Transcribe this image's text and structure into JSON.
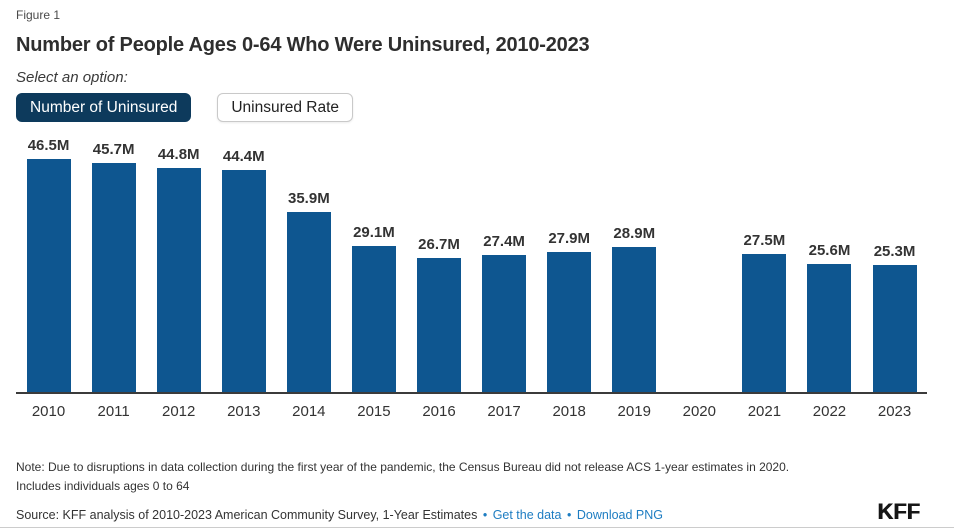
{
  "figure_label": "Figure 1",
  "title": "Number of People Ages 0-64 Who Were Uninsured, 2010-2023",
  "controls": {
    "prompt": "Select an option:",
    "buttons": [
      {
        "label": "Number of Uninsured",
        "selected": true
      },
      {
        "label": "Uninsured Rate",
        "selected": false
      }
    ]
  },
  "chart_data": {
    "type": "bar",
    "title": "Number of People Ages 0-64 Who Were Uninsured, 2010-2023",
    "categories": [
      "2010",
      "2011",
      "2012",
      "2013",
      "2014",
      "2015",
      "2016",
      "2017",
      "2018",
      "2019",
      "2020",
      "2021",
      "2022",
      "2023"
    ],
    "values": [
      46.5,
      45.7,
      44.8,
      44.4,
      35.9,
      29.1,
      26.7,
      27.4,
      27.9,
      28.9,
      null,
      27.5,
      25.6,
      25.3
    ],
    "labels": [
      "46.5M",
      "45.7M",
      "44.8M",
      "44.4M",
      "35.9M",
      "29.1M",
      "26.7M",
      "27.4M",
      "27.9M",
      "28.9M",
      null,
      "27.5M",
      "25.6M",
      "25.3M"
    ],
    "unit": "millions of people",
    "xlabel": "",
    "ylabel": "",
    "ylim": [
      0,
      46.5
    ],
    "grid": false,
    "legend": "none",
    "missing_data_note": "No bar for 2020 (ACS 1-year estimates not released)",
    "bar_color": "#0e5690"
  },
  "footer": {
    "note_line1": "Note: Due to disruptions in data collection during the first year of the pandemic, the Census Bureau did not release ACS 1-year estimates in 2020.",
    "note_line2": "Includes individuals ages 0 to 64",
    "source_prefix": "Source: KFF analysis of 2010-2023 American Community Survey, 1-Year Estimates",
    "separator": "•",
    "links": [
      "Get the data",
      "Download PNG"
    ],
    "logo": "KFF"
  },
  "colors": {
    "bar_blue": "#0e5690",
    "selected_button_navy": "#0d3a5c",
    "link_blue": "#1e7dc2",
    "text": "#333333",
    "axis_line": "#3b3b3b",
    "divider_gray": "#cccccc"
  }
}
